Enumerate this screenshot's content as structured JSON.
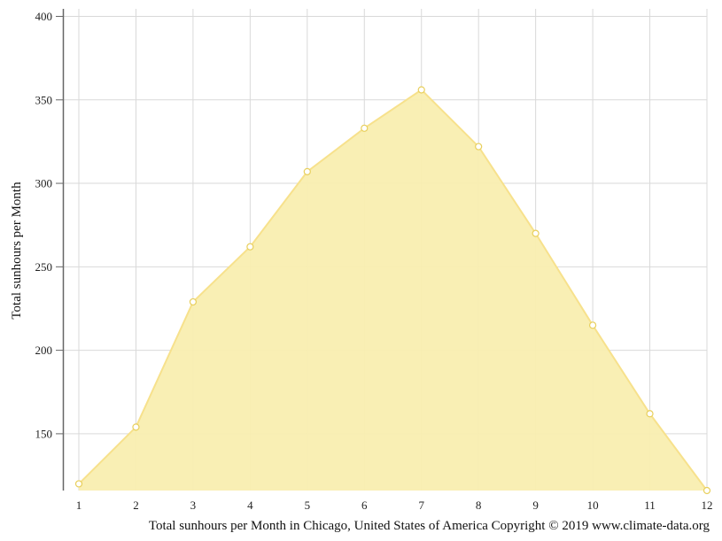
{
  "chart_data": {
    "type": "area",
    "x": [
      1,
      2,
      3,
      4,
      5,
      6,
      7,
      8,
      9,
      10,
      11,
      12
    ],
    "series": [
      {
        "values": [
          120,
          154,
          229,
          262,
          307,
          333,
          356,
          322,
          270,
          215,
          162,
          116
        ]
      }
    ],
    "ylabel": "Total sunhours per Month",
    "xlabel": "",
    "ylim": [
      116,
      400
    ],
    "xlim": [
      1,
      12
    ],
    "y_ticks": [
      150,
      200,
      250,
      300,
      350,
      400
    ],
    "x_ticks": [
      1,
      2,
      3,
      4,
      5,
      6,
      7,
      8,
      9,
      10,
      11,
      12
    ],
    "grid": true,
    "colors": {
      "fill": "#f9eeb0",
      "stroke": "#f7e18c",
      "marker_fill": "#ffffff",
      "marker_stroke": "#e8cf5c",
      "grid": "#d9d9d9",
      "axis": "#666666"
    }
  },
  "caption": "Total sunhours per Month in Chicago, United States of America Copyright © 2019 www.climate-data.org"
}
